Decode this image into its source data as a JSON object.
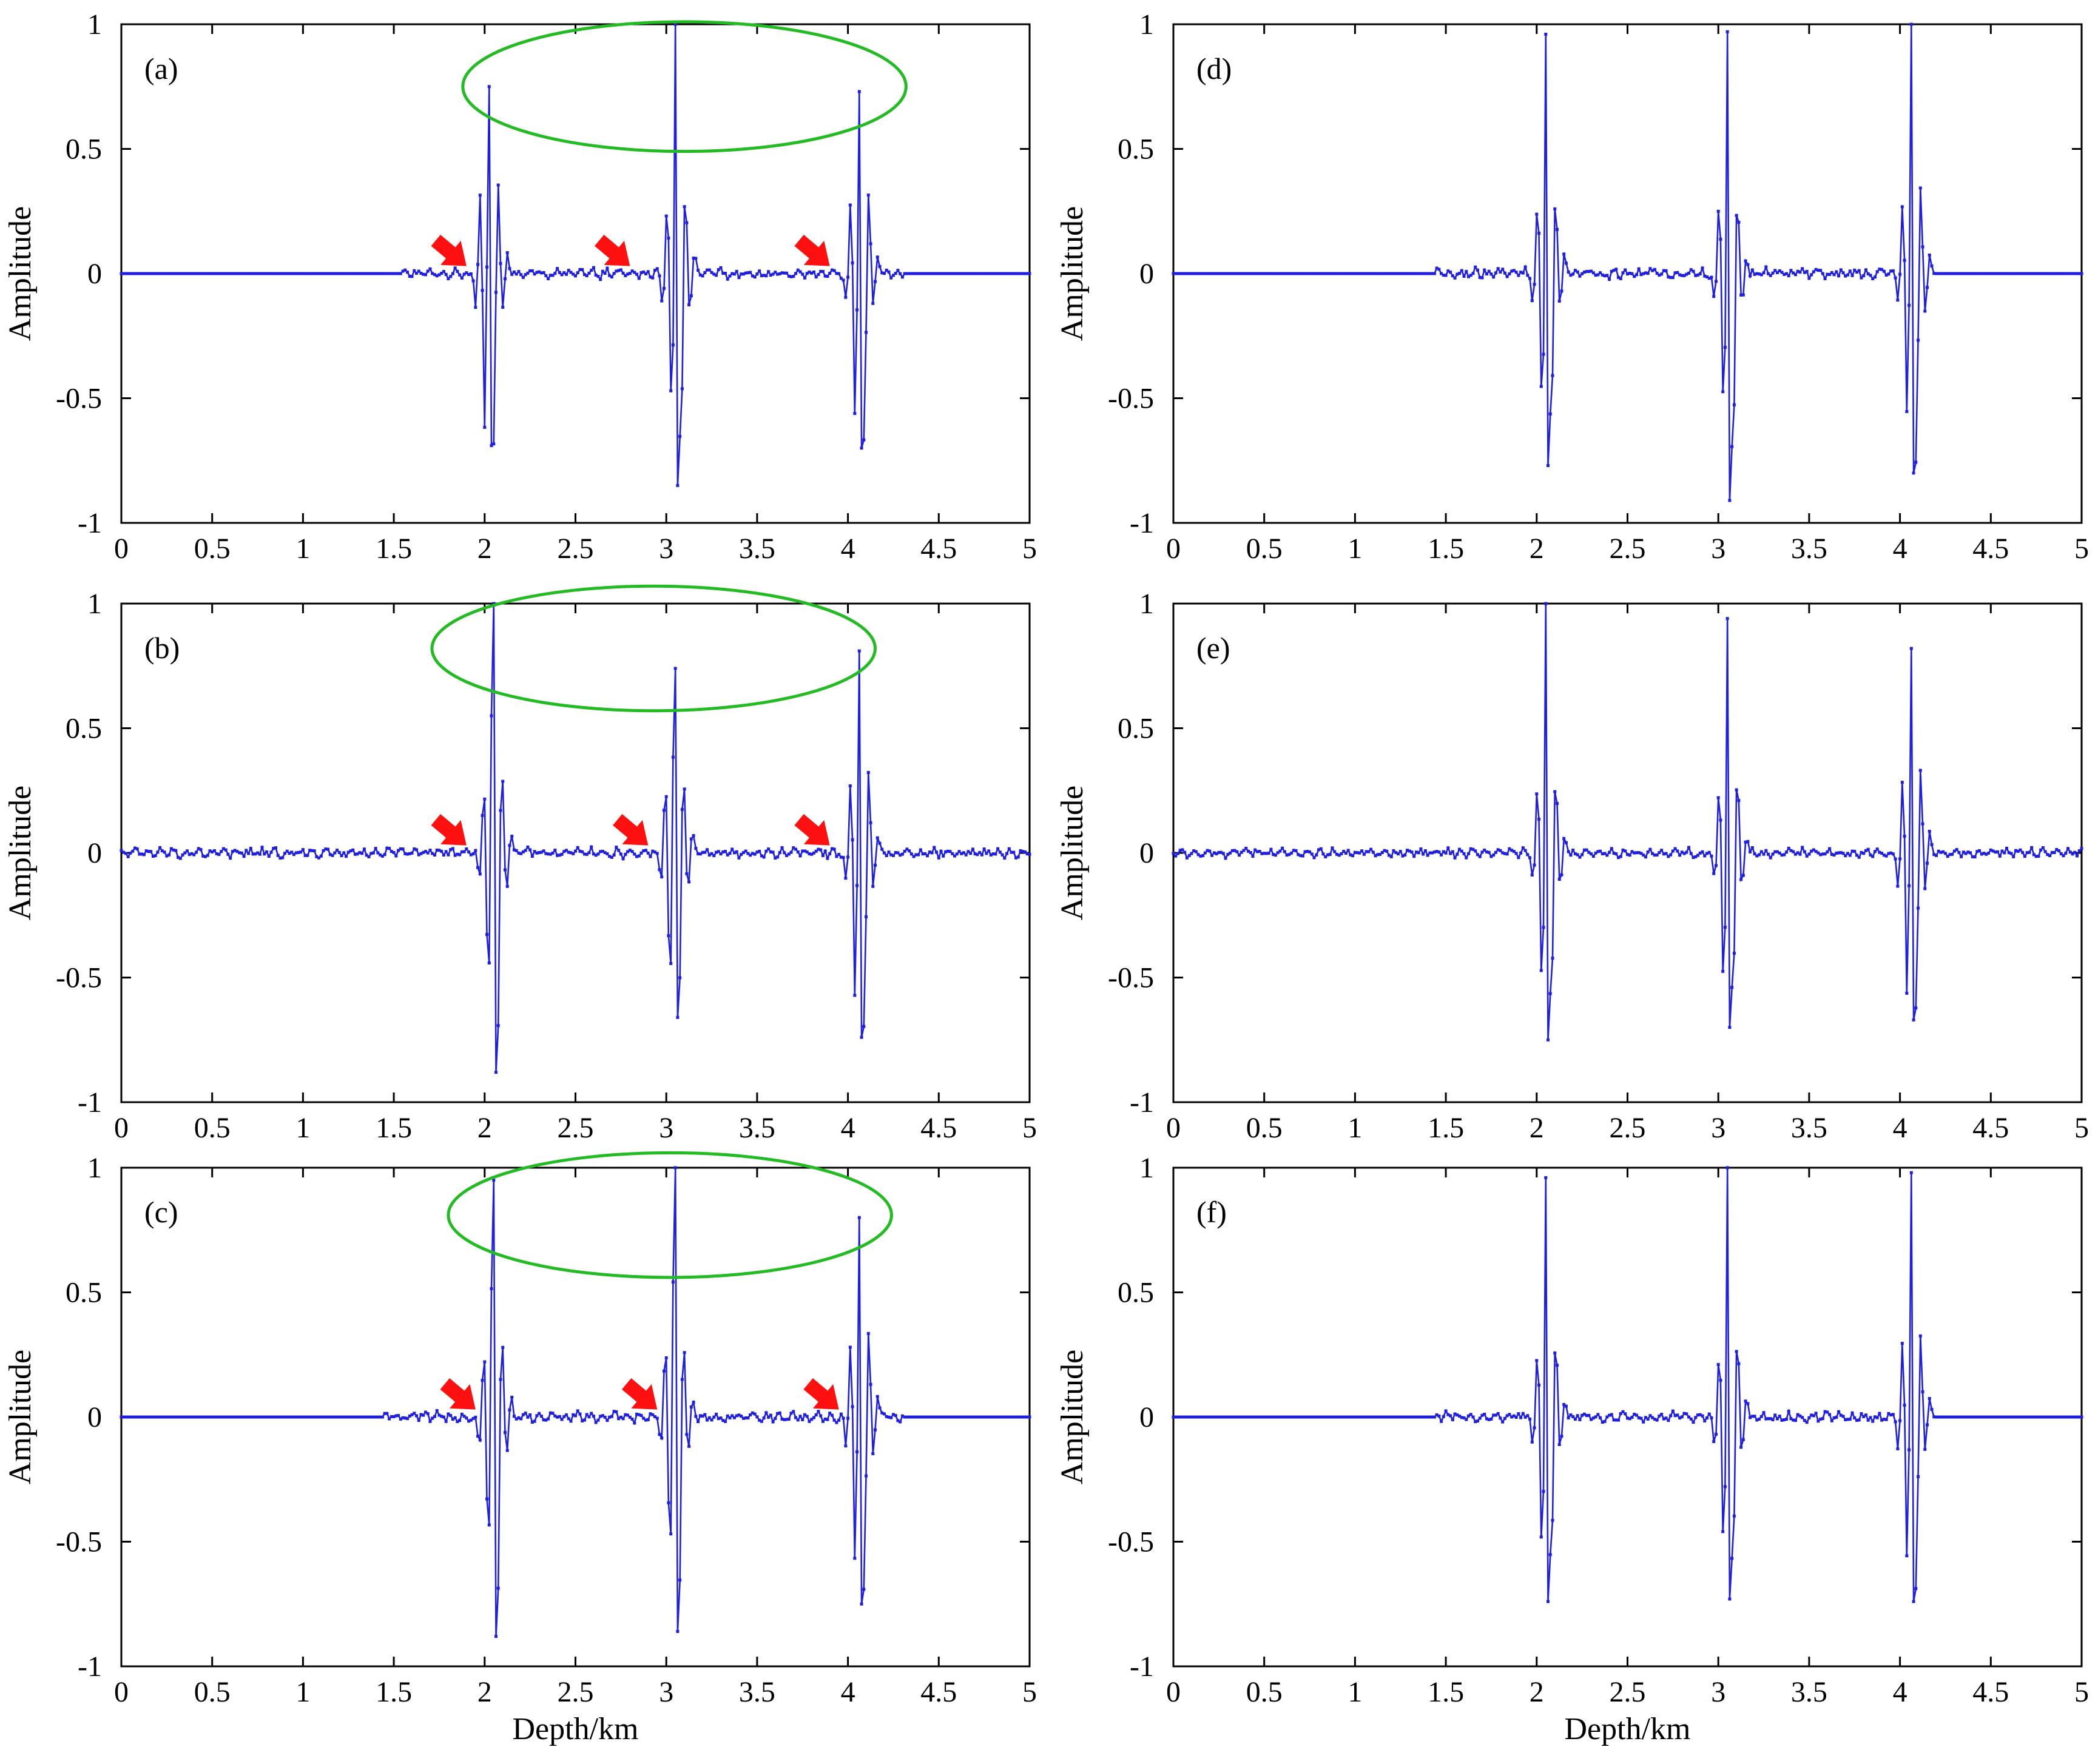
{
  "colors": {
    "signal": "#1f1fe0",
    "ellipse": "#22bb22",
    "arrow": "#ff1010",
    "axes": "#000000"
  },
  "chart_data": [
    {
      "id": "a",
      "type": "line",
      "panel_label": "(a)",
      "column": 0,
      "row": 0,
      "xlabel": "",
      "ylabel": "Amplitude",
      "xlim": [
        0,
        5
      ],
      "ylim": [
        -1,
        1
      ],
      "grid": false,
      "x_ticks": [
        "0",
        "0.5",
        "1",
        "1.5",
        "2",
        "2.5",
        "3",
        "3.5",
        "4",
        "4.5",
        "5"
      ],
      "y_ticks": [
        "-1",
        "-0.5",
        "0",
        "0.5",
        "1"
      ],
      "signal_span": [
        1.55,
        4.3
      ],
      "noise_amp": 0.012,
      "events": [
        {
          "x": 2.0,
          "a": 0.75,
          "b": 0.69
        },
        {
          "x": 3.03,
          "a": 1.0,
          "b": 0.85
        },
        {
          "x": 4.04,
          "a": 0.73,
          "b": 0.7
        }
      ],
      "arrows": [
        1.9,
        2.8,
        3.9
      ],
      "ellipse": {
        "cx": 3.1,
        "cy": 0.75,
        "rx": 1.22,
        "ry": 0.26
      }
    },
    {
      "id": "b",
      "type": "line",
      "panel_label": "(b)",
      "column": 0,
      "row": 1,
      "xlabel": "",
      "ylabel": "Amplitude",
      "xlim": [
        0,
        5
      ],
      "ylim": [
        -1,
        1
      ],
      "grid": false,
      "x_ticks": [
        "0",
        "0.5",
        "1",
        "1.5",
        "2",
        "2.5",
        "3",
        "3.5",
        "4",
        "4.5",
        "5"
      ],
      "y_ticks": [
        "-1",
        "-0.5",
        "0",
        "0.5",
        "1"
      ],
      "signal_span": [
        0,
        5
      ],
      "noise_amp": 0.012,
      "events": [
        {
          "x": 2.02,
          "a": 1.0,
          "b": 0.88
        },
        {
          "x": 3.02,
          "a": 0.74,
          "b": 0.66
        },
        {
          "x": 4.04,
          "a": 0.81,
          "b": 0.74
        }
      ],
      "arrows": [
        1.9,
        2.9,
        3.9
      ],
      "ellipse": {
        "cx": 2.93,
        "cy": 0.82,
        "rx": 1.22,
        "ry": 0.25
      }
    },
    {
      "id": "c",
      "type": "line",
      "panel_label": "(c)",
      "column": 0,
      "row": 2,
      "xlabel": "Depth/km",
      "ylabel": "Amplitude",
      "xlim": [
        0,
        5
      ],
      "ylim": [
        -1,
        1
      ],
      "grid": false,
      "x_ticks": [
        "0",
        "0.5",
        "1",
        "1.5",
        "2",
        "2.5",
        "3",
        "3.5",
        "4",
        "4.5",
        "5"
      ],
      "y_ticks": [
        "-1",
        "-0.5",
        "0",
        "0.5",
        "1"
      ],
      "signal_span": [
        1.45,
        4.3
      ],
      "noise_amp": 0.014,
      "events": [
        {
          "x": 2.02,
          "a": 0.95,
          "b": 0.88
        },
        {
          "x": 3.02,
          "a": 1.0,
          "b": 0.86
        },
        {
          "x": 4.04,
          "a": 0.8,
          "b": 0.75
        }
      ],
      "arrows": [
        1.95,
        2.95,
        3.95
      ],
      "ellipse": {
        "cx": 3.02,
        "cy": 0.81,
        "rx": 1.22,
        "ry": 0.25
      }
    },
    {
      "id": "d",
      "type": "line",
      "panel_label": "(d)",
      "column": 1,
      "row": 0,
      "xlabel": "",
      "ylabel": "Amplitude",
      "xlim": [
        0,
        5
      ],
      "ylim": [
        -1,
        1
      ],
      "grid": false,
      "x_ticks": [
        "0",
        "0.5",
        "1",
        "1.5",
        "2",
        "2.5",
        "3",
        "3.5",
        "4",
        "4.5",
        "5"
      ],
      "y_ticks": [
        "-1",
        "-0.5",
        "0",
        "0.5",
        "1"
      ],
      "signal_span": [
        1.45,
        4.15
      ],
      "noise_amp": 0.015,
      "events": [
        {
          "x": 2.03,
          "a": 0.96,
          "b": 0.77
        },
        {
          "x": 3.03,
          "a": 0.97,
          "b": 0.91
        },
        {
          "x": 4.04,
          "a": 1.0,
          "b": 0.8
        }
      ],
      "arrows": [],
      "ellipse": null
    },
    {
      "id": "e",
      "type": "line",
      "panel_label": "(e)",
      "column": 1,
      "row": 1,
      "xlabel": "",
      "ylabel": "Amplitude",
      "xlim": [
        0,
        5
      ],
      "ylim": [
        -1,
        1
      ],
      "grid": false,
      "x_ticks": [
        "0",
        "0.5",
        "1",
        "1.5",
        "2",
        "2.5",
        "3",
        "3.5",
        "4",
        "4.5",
        "5"
      ],
      "y_ticks": [
        "-1",
        "-0.5",
        "0",
        "0.5",
        "1"
      ],
      "signal_span": [
        0,
        5
      ],
      "noise_amp": 0.01,
      "events": [
        {
          "x": 2.03,
          "a": 1.0,
          "b": 0.75
        },
        {
          "x": 3.03,
          "a": 0.94,
          "b": 0.7
        },
        {
          "x": 4.04,
          "a": 0.82,
          "b": 0.67
        }
      ],
      "arrows": [],
      "ellipse": null
    },
    {
      "id": "f",
      "type": "line",
      "panel_label": "(f)",
      "column": 1,
      "row": 2,
      "xlabel": "Depth/km",
      "ylabel": "Amplitude",
      "xlim": [
        0,
        5
      ],
      "ylim": [
        -1,
        1
      ],
      "grid": false,
      "x_ticks": [
        "0",
        "0.5",
        "1",
        "1.5",
        "2",
        "2.5",
        "3",
        "3.5",
        "4",
        "4.5",
        "5"
      ],
      "y_ticks": [
        "-1",
        "-0.5",
        "0",
        "0.5",
        "1"
      ],
      "signal_span": [
        1.45,
        4.15
      ],
      "noise_amp": 0.013,
      "events": [
        {
          "x": 2.03,
          "a": 0.96,
          "b": 0.74
        },
        {
          "x": 3.03,
          "a": 1.0,
          "b": 0.73
        },
        {
          "x": 4.04,
          "a": 0.98,
          "b": 0.74
        }
      ],
      "arrows": [],
      "ellipse": null
    }
  ]
}
